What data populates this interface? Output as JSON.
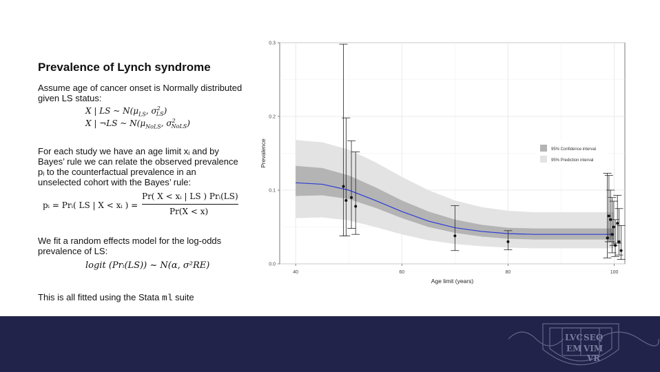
{
  "slide": {
    "title": "Prevalence of Lynch syndrome",
    "p1": "Assume age of cancer onset is Normally distributed given LS status:",
    "eq1_lhs": "X | LS ~ N(μ",
    "eq1_sub1": "LS",
    "eq1_mid": ", σ",
    "eq1_sup": "2",
    "eq1_sub2": "LS",
    "eq1_end": ")",
    "eq2_lhs": "X | ¬LS ~ N(μ",
    "eq2_sub1": "NoLS",
    "eq2_mid": ", σ",
    "eq2_sup": "2",
    "eq2_sub2": "NoLS",
    "eq2_end": ")",
    "p2": "For each study we have an age limit xᵢ and by Bayes’ rule we can relate the observed prevalence pᵢ to the counterfactual prevalence in an unselected cohort with the Bayes’ rule:",
    "bayes_lhs": "pᵢ = Prᵢ( LS | X < xᵢ ) =",
    "bayes_num": "Pr( X < xᵢ | LS ) Prᵢ(LS)",
    "bayes_den": "Pr(X < x)",
    "p3": "We fit a random effects model for the log-odds prevalence of LS:",
    "logit_eq": "logit (Prᵢ(LS)) ~ N(α, σ²RE)",
    "p4_pre": "This is all fitted using the Stata ",
    "p4_code": "ml",
    "p4_post": " suite"
  },
  "chart_data": {
    "type": "scatter",
    "xlabel": "Age limit (years)",
    "ylabel": "Prevalence",
    "xlim": [
      37,
      102
    ],
    "ylim": [
      0.0,
      0.3
    ],
    "x_ticks": [
      40,
      60,
      80,
      100
    ],
    "y_ticks": [
      "0.0",
      "0.1",
      "0.2",
      "0.3"
    ],
    "grid": true,
    "legend_position": "right",
    "legend": [
      "95% Confidence interval",
      "95% Prediction interval"
    ],
    "fit_curve": {
      "x": [
        40,
        45,
        50,
        55,
        60,
        65,
        70,
        75,
        80,
        85,
        90,
        95,
        100
      ],
      "y": [
        0.11,
        0.108,
        0.1,
        0.086,
        0.071,
        0.058,
        0.049,
        0.044,
        0.041,
        0.04,
        0.04,
        0.04,
        0.04
      ]
    },
    "confidence_band": {
      "x": [
        40,
        45,
        50,
        55,
        60,
        65,
        70,
        75,
        80,
        85,
        90,
        95,
        100
      ],
      "lower": [
        0.092,
        0.093,
        0.088,
        0.076,
        0.062,
        0.05,
        0.042,
        0.037,
        0.034,
        0.033,
        0.033,
        0.033,
        0.033
      ],
      "upper": [
        0.133,
        0.13,
        0.12,
        0.104,
        0.086,
        0.071,
        0.06,
        0.053,
        0.049,
        0.048,
        0.048,
        0.048,
        0.048
      ]
    },
    "prediction_band": {
      "x": [
        40,
        45,
        50,
        55,
        60,
        65,
        70,
        75,
        80,
        85,
        90,
        95,
        100
      ],
      "lower": [
        0.062,
        0.063,
        0.059,
        0.05,
        0.04,
        0.032,
        0.027,
        0.024,
        0.022,
        0.021,
        0.021,
        0.021,
        0.021
      ],
      "upper": [
        0.168,
        0.165,
        0.155,
        0.138,
        0.118,
        0.1,
        0.086,
        0.077,
        0.072,
        0.07,
        0.07,
        0.07,
        0.07
      ]
    },
    "points": [
      {
        "x": 49.0,
        "y": 0.105,
        "lo": 0.038,
        "hi": 0.298
      },
      {
        "x": 49.5,
        "y": 0.086,
        "lo": 0.038,
        "hi": 0.198
      },
      {
        "x": 50.5,
        "y": 0.09,
        "lo": 0.048,
        "hi": 0.167
      },
      {
        "x": 51.3,
        "y": 0.078,
        "lo": 0.04,
        "hi": 0.152
      },
      {
        "x": 70.0,
        "y": 0.038,
        "lo": 0.018,
        "hi": 0.079
      },
      {
        "x": 80.0,
        "y": 0.03,
        "lo": 0.019,
        "hi": 0.045
      },
      {
        "x": 98.7,
        "y": 0.035,
        "lo": 0.008,
        "hi": 0.123
      },
      {
        "x": 99.0,
        "y": 0.065,
        "lo": 0.03,
        "hi": 0.12
      },
      {
        "x": 99.3,
        "y": 0.06,
        "lo": 0.03,
        "hi": 0.1
      },
      {
        "x": 99.6,
        "y": 0.04,
        "lo": 0.015,
        "hi": 0.09
      },
      {
        "x": 99.9,
        "y": 0.05,
        "lo": 0.025,
        "hi": 0.085
      },
      {
        "x": 100.2,
        "y": 0.025,
        "lo": 0.01,
        "hi": 0.06
      },
      {
        "x": 100.6,
        "y": 0.055,
        "lo": 0.028,
        "hi": 0.093
      },
      {
        "x": 100.9,
        "y": 0.03,
        "lo": 0.012,
        "hi": 0.075
      },
      {
        "x": 101.3,
        "y": 0.018,
        "lo": 0.006,
        "hi": 0.052
      }
    ]
  },
  "footer": {
    "crest_text": [
      "LVC",
      "SEQ",
      "EM",
      "VIM",
      "VR"
    ],
    "band_color": "#22234a"
  }
}
